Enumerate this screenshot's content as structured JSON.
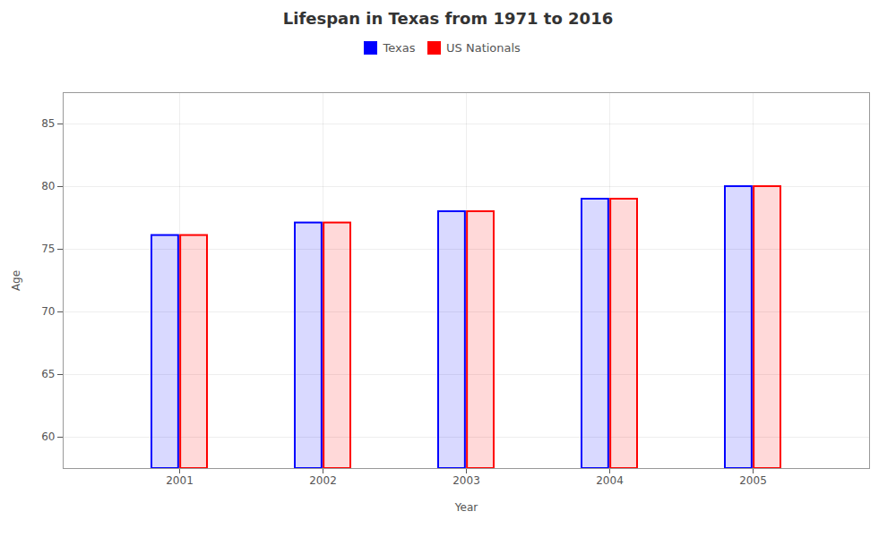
{
  "chart_data": {
    "type": "bar",
    "title": "Lifespan in Texas from 1971 to 2016",
    "xlabel": "Year",
    "ylabel": "Age",
    "categories": [
      "2001",
      "2002",
      "2003",
      "2004",
      "2005"
    ],
    "series": [
      {
        "name": "Texas",
        "color": "#0000ff",
        "values": [
          76.1,
          77.1,
          78.0,
          79.0,
          80.0
        ]
      },
      {
        "name": "US Nationals",
        "color": "#ff0000",
        "values": [
          76.1,
          77.1,
          78.0,
          79.0,
          80.0
        ]
      }
    ],
    "ylim": [
      57.5,
      87.5
    ],
    "yticks": [
      60,
      65,
      70,
      75,
      80,
      85
    ],
    "grid": true,
    "legend": "top"
  }
}
